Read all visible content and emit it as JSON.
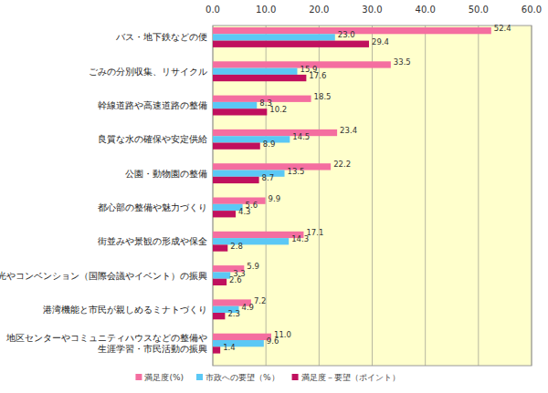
{
  "chart_data": {
    "type": "bar",
    "orientation": "horizontal",
    "categories": [
      "バス・地下鉄などの便",
      "ごみの分別収集、リサイクル",
      "幹線道路や高速道路の整備",
      "良質な水の確保や安定供給",
      "公園・動物園の整備",
      "都心部の整備や魅力づくり",
      "街並みや景観の形成や保全",
      "観光やコンベンション（国際会議やイベント）の振興",
      "港湾機能と市民が親しめるミナトづくり",
      "地区センターやコミュニティハウスなどの整備や\n生涯学習・市民活動の振興"
    ],
    "series": [
      {
        "name": "満足度(%)",
        "color": "#f46ea0",
        "values": [
          52.4,
          33.5,
          18.5,
          23.4,
          22.2,
          9.9,
          17.1,
          5.9,
          7.2,
          11.0
        ],
        "value_labels": [
          "52.4",
          "33.5",
          "18.5",
          "23.4",
          "22.2",
          "9.9",
          "17.1",
          "5.9",
          "7.2",
          "11.0"
        ]
      },
      {
        "name": "市政への要望（%）",
        "color": "#5bc8f5",
        "values": [
          23.0,
          15.9,
          8.3,
          14.5,
          13.5,
          5.6,
          14.3,
          3.3,
          4.9,
          9.6
        ],
        "value_labels": [
          "23.0",
          "15.9",
          "8.3",
          "14.5",
          "13.5",
          "5.6",
          "14.3",
          "3.3",
          "4.9",
          "9.6"
        ]
      },
      {
        "name": "満足度－要望（ポイント）",
        "color": "#c0105e",
        "values": [
          29.4,
          17.6,
          10.2,
          8.9,
          8.7,
          4.3,
          2.8,
          2.6,
          2.3,
          1.4
        ],
        "value_labels": [
          "29.4",
          "17.6",
          "10.2",
          "8.9",
          "8.7",
          "4.3",
          "2.8",
          "2.6",
          "2.3",
          "1.4"
        ]
      }
    ],
    "xlim": [
      0,
      60
    ],
    "xticks": [
      {
        "value": 0,
        "label": "0.0"
      },
      {
        "value": 10,
        "label": "10.0"
      },
      {
        "value": 20,
        "label": "20.0"
      },
      {
        "value": 30,
        "label": "30.0"
      },
      {
        "value": 40,
        "label": "40.0"
      },
      {
        "value": 50,
        "label": "50.0"
      },
      {
        "value": 60,
        "label": "60.0"
      }
    ],
    "grid": true,
    "data_labels": true,
    "legend": "bottom"
  }
}
